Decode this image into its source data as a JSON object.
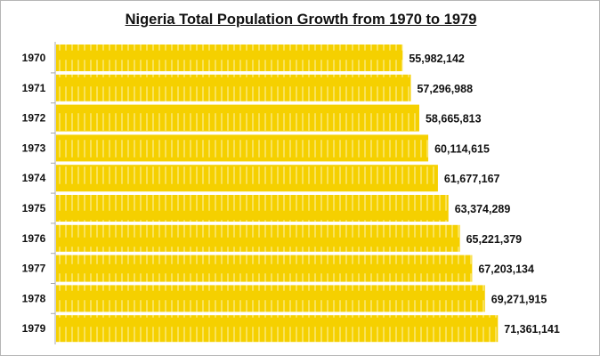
{
  "chart_data": {
    "type": "bar",
    "orientation": "horizontal",
    "title": "Nigeria Total Population Growth from 1970 to 1979",
    "categories": [
      "1970",
      "1971",
      "1972",
      "1973",
      "1974",
      "1975",
      "1976",
      "1977",
      "1978",
      "1979"
    ],
    "values": [
      55982142,
      57296988,
      58665813,
      60114615,
      61677167,
      63374289,
      65221379,
      67203134,
      69271915,
      71361141
    ],
    "value_labels": [
      "55,982,142",
      "57,296,988",
      "58,665,813",
      "60,114,615",
      "61,677,167",
      "63,374,289",
      "65,221,379",
      "67,203,134",
      "69,271,915",
      "71,361,141"
    ],
    "xlim": [
      0,
      88000000
    ],
    "grid": false,
    "bar_color": "#f5d000",
    "xlabel": "",
    "ylabel": ""
  }
}
